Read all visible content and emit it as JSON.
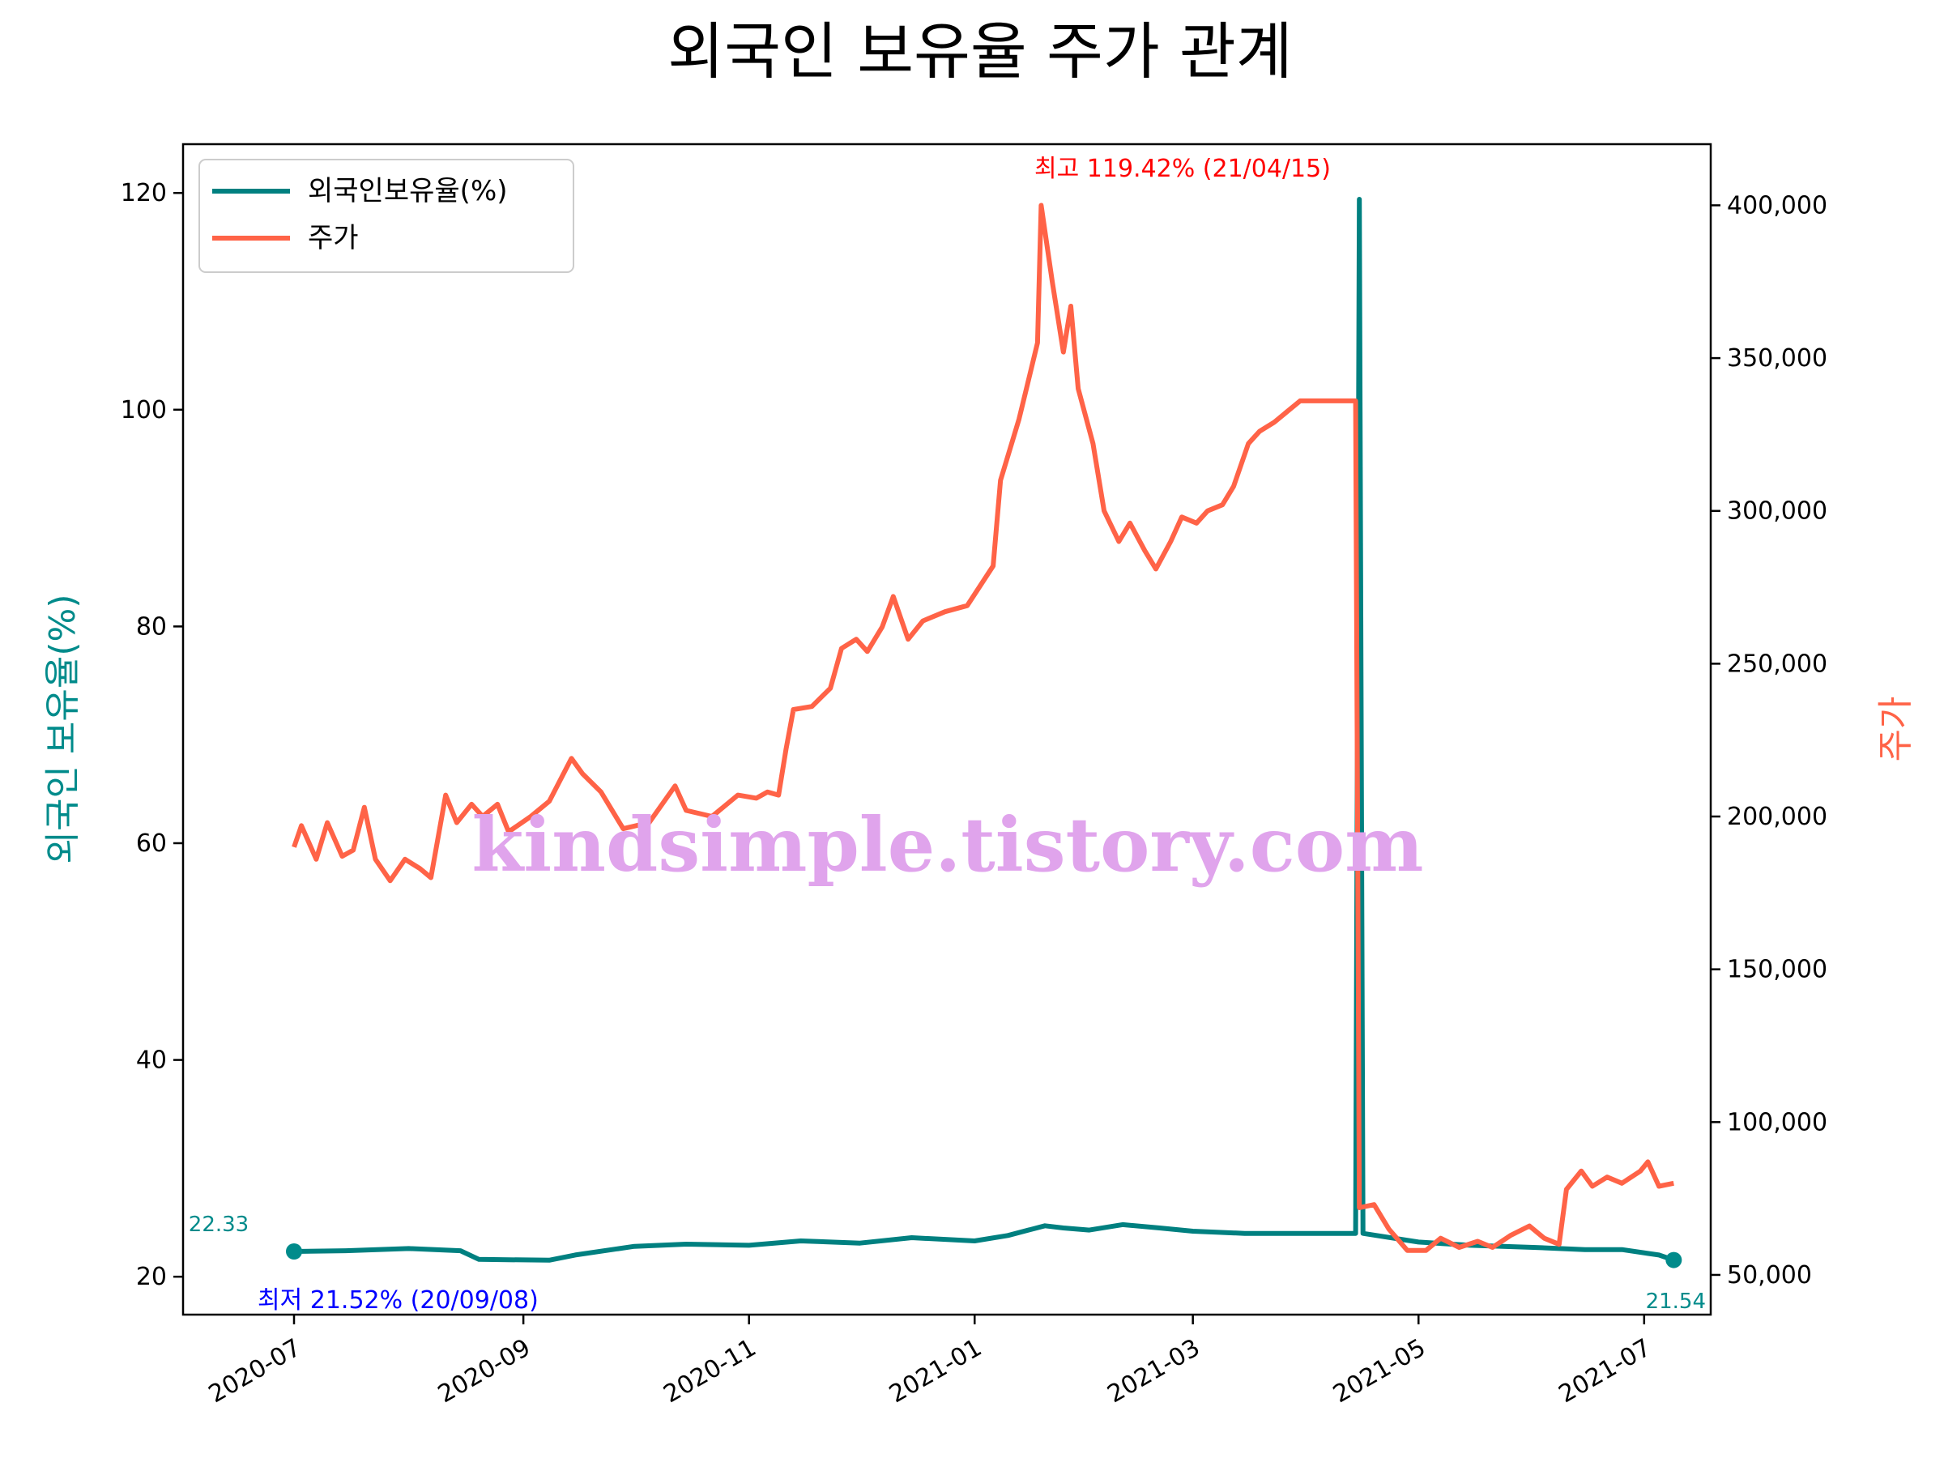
{
  "chart_data": {
    "type": "line",
    "title": "외국인 보유율 주가 관계",
    "ylabel_left": "외국인 보유율(%)",
    "ylabel_right": "주가",
    "legend_position": "top-left",
    "grid": false,
    "xlim": [
      "2020-06-01",
      "2021-07-19"
    ],
    "ylim_left": [
      16.5,
      124.5
    ],
    "ylim_right": [
      37000,
      420000
    ],
    "x_ticks": [
      "2020-07",
      "2020-09",
      "2020-11",
      "2021-01",
      "2021-03",
      "2021-05",
      "2021-07"
    ],
    "y_ticks_left": [
      "20",
      "40",
      "60",
      "80",
      "100",
      "120"
    ],
    "y_ticks_right": [
      "50,000",
      "100,000",
      "150,000",
      "200,000",
      "250,000",
      "300,000",
      "350,000",
      "400,000"
    ],
    "series": [
      {
        "name": "외국인보유율(%)",
        "axis": "left",
        "color": "#008080",
        "points": [
          [
            "2020-07-01",
            22.33
          ],
          [
            "2020-07-15",
            22.4
          ],
          [
            "2020-08-01",
            22.6
          ],
          [
            "2020-08-15",
            22.4
          ],
          [
            "2020-08-20",
            21.6
          ],
          [
            "2020-09-08",
            21.52
          ],
          [
            "2020-09-15",
            22.0
          ],
          [
            "2020-10-01",
            22.8
          ],
          [
            "2020-10-15",
            23.0
          ],
          [
            "2020-11-01",
            22.9
          ],
          [
            "2020-11-15",
            23.3
          ],
          [
            "2020-12-01",
            23.1
          ],
          [
            "2020-12-15",
            23.6
          ],
          [
            "2021-01-01",
            23.3
          ],
          [
            "2021-01-10",
            23.8
          ],
          [
            "2021-01-20",
            24.7
          ],
          [
            "2021-01-25",
            24.5
          ],
          [
            "2021-02-01",
            24.3
          ],
          [
            "2021-02-10",
            24.8
          ],
          [
            "2021-02-20",
            24.5
          ],
          [
            "2021-03-01",
            24.2
          ],
          [
            "2021-03-15",
            24.0
          ],
          [
            "2021-04-14",
            24.0
          ],
          [
            "2021-04-15",
            119.42
          ],
          [
            "2021-04-16",
            24.0
          ],
          [
            "2021-05-01",
            23.2
          ],
          [
            "2021-05-15",
            22.9
          ],
          [
            "2021-06-01",
            22.7
          ],
          [
            "2021-06-15",
            22.5
          ],
          [
            "2021-06-25",
            22.5
          ],
          [
            "2021-07-05",
            22.0
          ],
          [
            "2021-07-09",
            21.54
          ]
        ]
      },
      {
        "name": "주가",
        "axis": "right",
        "color": "#ff6347",
        "points": [
          [
            "2020-07-01",
            190000
          ],
          [
            "2020-07-03",
            197000
          ],
          [
            "2020-07-07",
            186000
          ],
          [
            "2020-07-10",
            198000
          ],
          [
            "2020-07-14",
            187000
          ],
          [
            "2020-07-17",
            189000
          ],
          [
            "2020-07-20",
            203000
          ],
          [
            "2020-07-23",
            186000
          ],
          [
            "2020-07-27",
            179000
          ],
          [
            "2020-07-31",
            186000
          ],
          [
            "2020-08-04",
            183000
          ],
          [
            "2020-08-07",
            180000
          ],
          [
            "2020-08-11",
            207000
          ],
          [
            "2020-08-14",
            198000
          ],
          [
            "2020-08-18",
            204000
          ],
          [
            "2020-08-21",
            200000
          ],
          [
            "2020-08-25",
            204000
          ],
          [
            "2020-08-28",
            195000
          ],
          [
            "2020-09-03",
            200000
          ],
          [
            "2020-09-08",
            205000
          ],
          [
            "2020-09-14",
            219000
          ],
          [
            "2020-09-17",
            214000
          ],
          [
            "2020-09-22",
            208000
          ],
          [
            "2020-09-28",
            196000
          ],
          [
            "2020-10-05",
            198000
          ],
          [
            "2020-10-12",
            210000
          ],
          [
            "2020-10-15",
            202000
          ],
          [
            "2020-10-22",
            200000
          ],
          [
            "2020-10-29",
            207000
          ],
          [
            "2020-11-03",
            206000
          ],
          [
            "2020-11-06",
            208000
          ],
          [
            "2020-11-09",
            207000
          ],
          [
            "2020-11-11",
            222000
          ],
          [
            "2020-11-13",
            235000
          ],
          [
            "2020-11-18",
            236000
          ],
          [
            "2020-11-23",
            242000
          ],
          [
            "2020-11-26",
            255000
          ],
          [
            "2020-11-30",
            258000
          ],
          [
            "2020-12-03",
            254000
          ],
          [
            "2020-12-07",
            262000
          ],
          [
            "2020-12-10",
            272000
          ],
          [
            "2020-12-14",
            258000
          ],
          [
            "2020-12-18",
            264000
          ],
          [
            "2020-12-24",
            267000
          ],
          [
            "2020-12-30",
            269000
          ],
          [
            "2021-01-06",
            282000
          ],
          [
            "2021-01-08",
            310000
          ],
          [
            "2021-01-11",
            322000
          ],
          [
            "2021-01-13",
            330000
          ],
          [
            "2021-01-15",
            340000
          ],
          [
            "2021-01-18",
            355000
          ],
          [
            "2021-01-19",
            400000
          ],
          [
            "2021-01-22",
            375000
          ],
          [
            "2021-01-25",
            352000
          ],
          [
            "2021-01-27",
            367000
          ],
          [
            "2021-01-29",
            340000
          ],
          [
            "2021-02-02",
            322000
          ],
          [
            "2021-02-05",
            300000
          ],
          [
            "2021-02-09",
            290000
          ],
          [
            "2021-02-12",
            296000
          ],
          [
            "2021-02-16",
            287000
          ],
          [
            "2021-02-19",
            281000
          ],
          [
            "2021-02-23",
            290000
          ],
          [
            "2021-02-26",
            298000
          ],
          [
            "2021-03-02",
            296000
          ],
          [
            "2021-03-05",
            300000
          ],
          [
            "2021-03-09",
            302000
          ],
          [
            "2021-03-12",
            308000
          ],
          [
            "2021-03-16",
            322000
          ],
          [
            "2021-03-19",
            326000
          ],
          [
            "2021-03-23",
            329000
          ],
          [
            "2021-03-26",
            332000
          ],
          [
            "2021-03-30",
            336000
          ],
          [
            "2021-04-14",
            336000
          ],
          [
            "2021-04-15",
            72000
          ],
          [
            "2021-04-19",
            73000
          ],
          [
            "2021-04-23",
            65000
          ],
          [
            "2021-04-28",
            58000
          ],
          [
            "2021-05-03",
            58000
          ],
          [
            "2021-05-07",
            62000
          ],
          [
            "2021-05-12",
            59000
          ],
          [
            "2021-05-17",
            61000
          ],
          [
            "2021-05-21",
            59000
          ],
          [
            "2021-05-26",
            63000
          ],
          [
            "2021-05-31",
            66000
          ],
          [
            "2021-06-04",
            62000
          ],
          [
            "2021-06-08",
            60000
          ],
          [
            "2021-06-10",
            78000
          ],
          [
            "2021-06-14",
            84000
          ],
          [
            "2021-06-17",
            79000
          ],
          [
            "2021-06-21",
            82000
          ],
          [
            "2021-06-25",
            80000
          ],
          [
            "2021-06-30",
            84000
          ],
          [
            "2021-07-02",
            87000
          ],
          [
            "2021-07-05",
            79000
          ],
          [
            "2021-07-09",
            80000
          ]
        ]
      }
    ],
    "annotations": {
      "max_label": "최고 119.42% (21/04/15)",
      "min_label": "최저 21.52% (20/09/08)",
      "start_value": "22.33",
      "end_value": "21.54",
      "watermark": "kindsimple.tistory.com"
    },
    "colors": {
      "holding": "#008080",
      "price": "#ff6347",
      "max_label": "#ff0000",
      "min_label": "#0000ff",
      "value_label": "#008b8b",
      "watermark": "#e0a4ec"
    }
  }
}
